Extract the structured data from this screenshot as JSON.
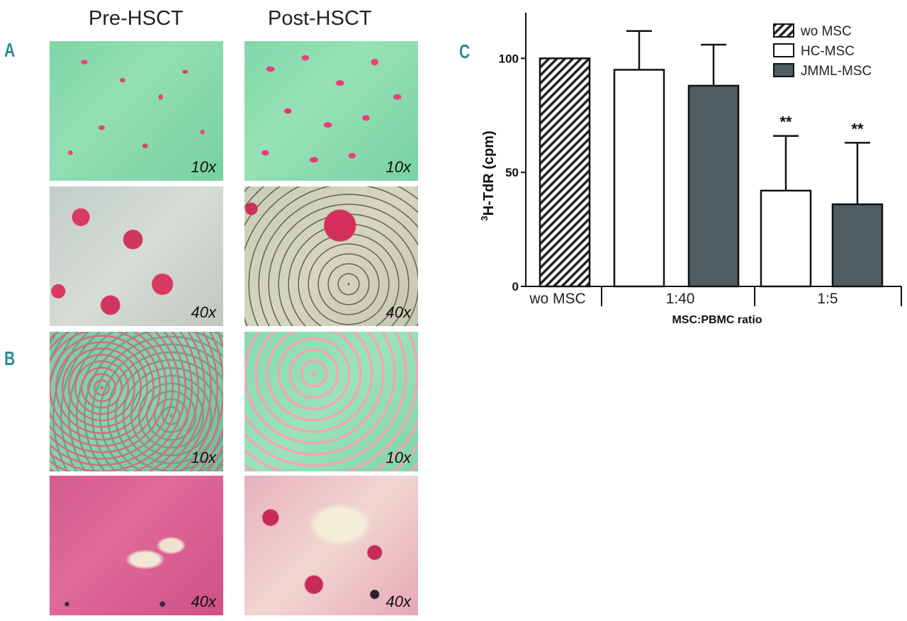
{
  "figure": {
    "columns": {
      "pre": "Pre-HSCT",
      "post": "Post-HSCT"
    },
    "panel_letters": {
      "a": "A",
      "b": "B",
      "c": "C"
    },
    "magnifications": {
      "low": "10x",
      "high": "40x"
    }
  },
  "chart_data": {
    "type": "bar",
    "ylabel_prefix": "3",
    "ylabel": "H-TdR (cpm)",
    "xlabel": "MSC:PBMC ratio",
    "ylim": [
      0,
      120
    ],
    "yticks": [
      0,
      50,
      100
    ],
    "groups": [
      "wo MSC",
      "1:40",
      "1:5"
    ],
    "legend_position": "top-right",
    "legend": [
      {
        "name": "wo MSC",
        "fill": "hatch"
      },
      {
        "name": "HC-MSC",
        "fill": "#ffffff"
      },
      {
        "name": "JMML-MSC",
        "fill": "#4e5d61"
      }
    ],
    "bars": [
      {
        "group": "wo MSC",
        "series": "wo MSC",
        "value": 100,
        "error": 0,
        "sig": ""
      },
      {
        "group": "1:40",
        "series": "HC-MSC",
        "value": 95,
        "error": 17,
        "sig": ""
      },
      {
        "group": "1:40",
        "series": "JMML-MSC",
        "value": 88,
        "error": 18,
        "sig": ""
      },
      {
        "group": "1:5",
        "series": "HC-MSC",
        "value": 42,
        "error": 24,
        "sig": "**"
      },
      {
        "group": "1:5",
        "series": "JMML-MSC",
        "value": 36,
        "error": 27,
        "sig": "**"
      }
    ]
  }
}
